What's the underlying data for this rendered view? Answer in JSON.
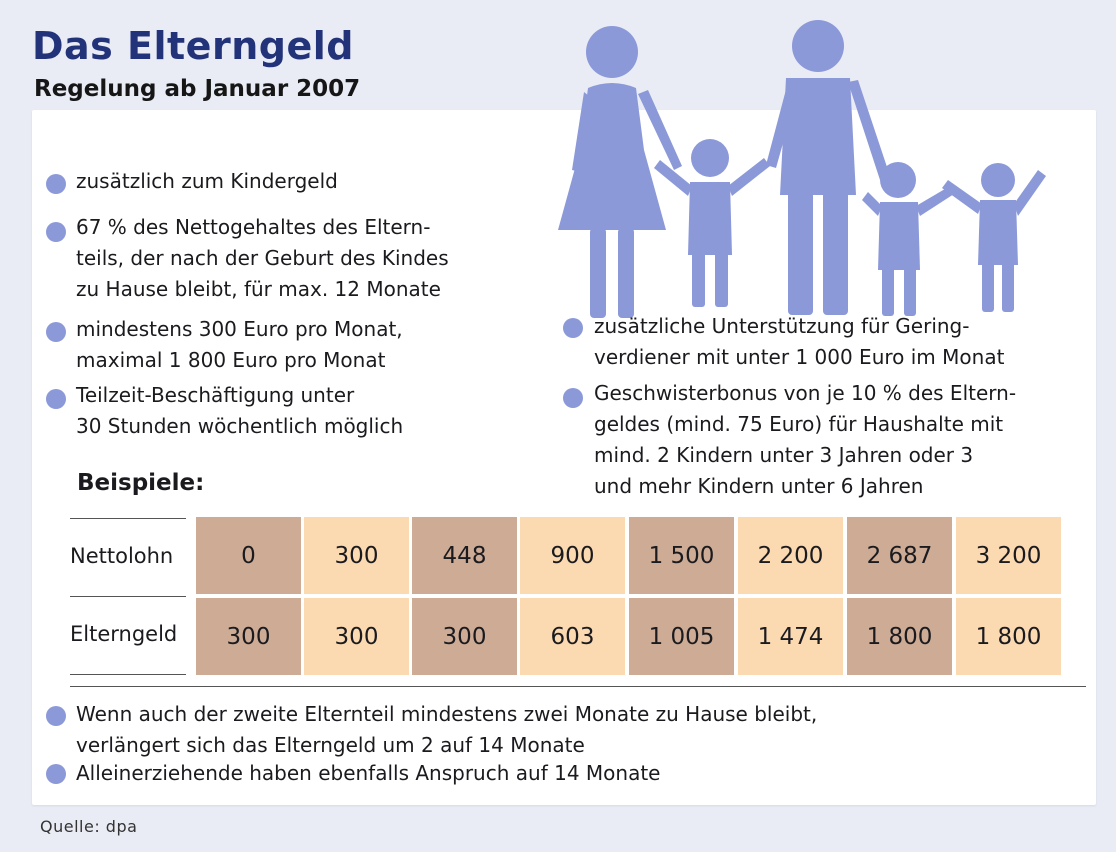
{
  "title": "Das Elterngeld",
  "subtitle": "Regelung ab Januar 2007",
  "bullets_left": [
    [
      "zusätzlich zum Kindergeld"
    ],
    [
      "67 % des Nettogehaltes des Eltern-",
      "teils, der nach der Geburt des Kindes",
      "zu Hause bleibt, für max. 12 Monate"
    ],
    [
      "mindestens 300 Euro pro Monat,",
      "maximal 1 800 Euro pro Monat"
    ],
    [
      "Teilzeit-Beschäftigung unter",
      "30 Stunden wöchentlich möglich"
    ]
  ],
  "bullets_right": [
    [
      "zusätzliche Unterstützung für Gering-",
      "verdiener mit unter 1 000 Euro im Monat"
    ],
    [
      "Geschwisterbonus von je 10 % des Eltern-",
      "geldes (mind. 75 Euro) für Haushalte mit",
      "mind. 2 Kindern unter 3 Jahren oder 3",
      "und mehr Kindern unter 6 Jahren"
    ]
  ],
  "examples_heading": "Beispiele:",
  "table": {
    "row_labels": [
      "Nettolohn",
      "Elterngeld"
    ],
    "nettolohn": [
      "0",
      "300",
      "448",
      "900",
      "1 500",
      "2 200",
      "2 687",
      "3 200"
    ],
    "elterngeld": [
      "300",
      "300",
      "300",
      "603",
      "1 005",
      "1 474",
      "1 800",
      "1 800"
    ]
  },
  "bullets_bottom": [
    [
      "Wenn auch der zweite Elternteil mindestens zwei Monate zu Hause bleibt,",
      "verlängert sich das Elterngeld um 2 auf 14 Monate"
    ],
    [
      "Alleinerziehende haben ebenfalls Anspruch auf 14 Monate"
    ]
  ],
  "source": "Quelle: dpa",
  "colors": {
    "title": "#23337a",
    "bullet": "#8c99d9",
    "family": "#8c99d9",
    "cell_dark": "#cdab95",
    "cell_light": "#fbd9b1",
    "panel": "#ffffff",
    "background": "#e9ecf5"
  },
  "icons": [
    "family-illustration",
    "bullet-dot"
  ]
}
